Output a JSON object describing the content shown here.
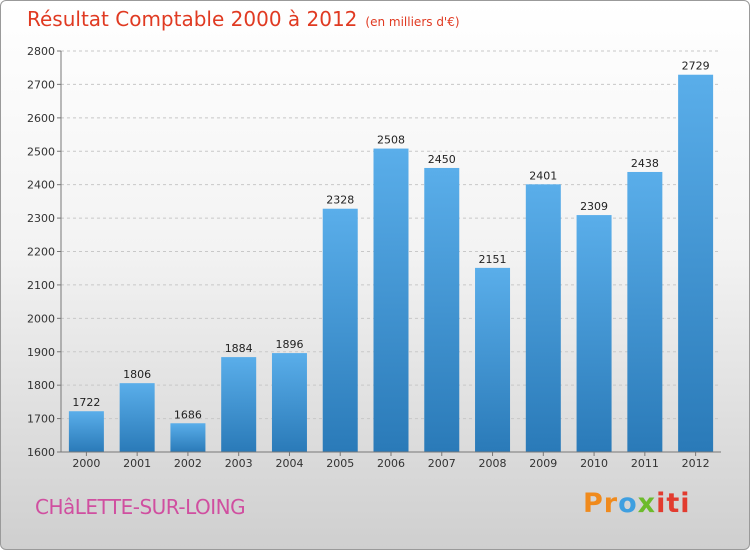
{
  "title": "Résultat Comptable 2000 à 2012",
  "subtitle": "(en milliers d'€)",
  "footer": {
    "city": "CHâLETTE-SUR-LOING",
    "logo": {
      "text": "Proxiti",
      "parts": [
        "Pr",
        "o",
        "x",
        "iti"
      ]
    }
  },
  "colors": {
    "bar_top": "#5aaeea",
    "bar_bottom": "#2a7ab8",
    "title": "#e03a22",
    "city": "#d04fa0"
  },
  "chart_data": {
    "type": "bar",
    "title": "Résultat Comptable 2000 à 2012",
    "xlabel": "",
    "ylabel": "",
    "ylim": [
      1600,
      2800
    ],
    "yticks": [
      1600,
      1700,
      1800,
      1900,
      2000,
      2100,
      2200,
      2300,
      2400,
      2500,
      2600,
      2700,
      2800
    ],
    "grid": true,
    "categories": [
      "2000",
      "2001",
      "2002",
      "2003",
      "2004",
      "2005",
      "2006",
      "2007",
      "2008",
      "2009",
      "2010",
      "2011",
      "2012"
    ],
    "values": [
      1722,
      1806,
      1686,
      1884,
      1896,
      2328,
      2508,
      2450,
      2151,
      2401,
      2309,
      2438,
      2729
    ]
  }
}
